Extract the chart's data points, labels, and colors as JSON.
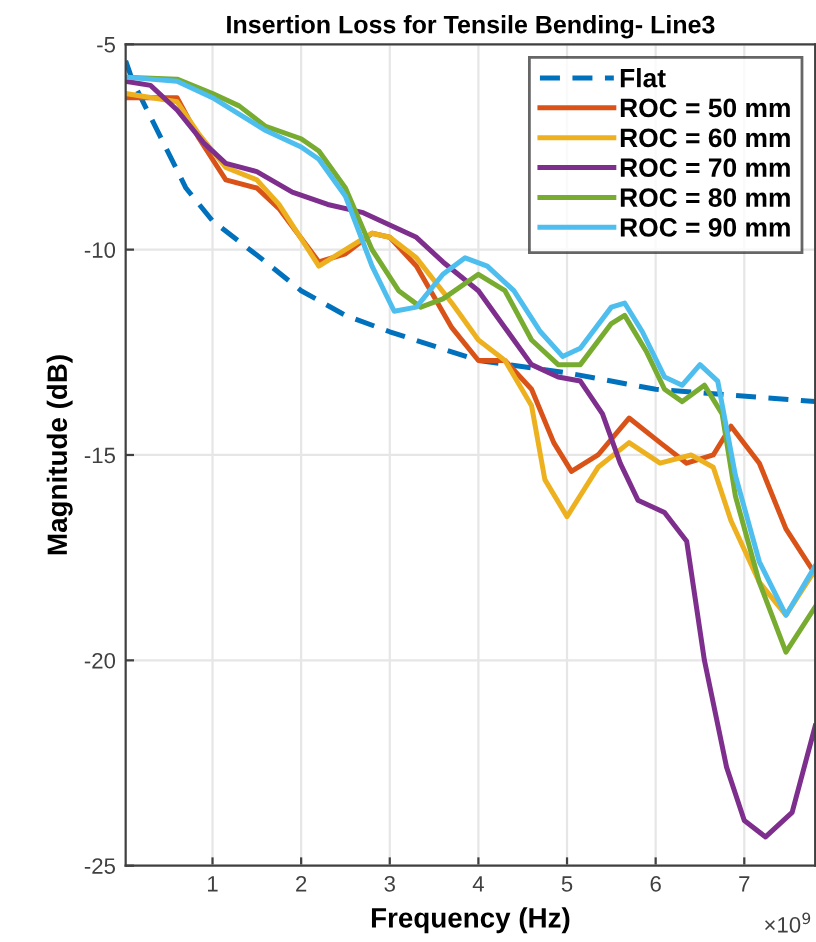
{
  "chart_data": {
    "type": "line",
    "title": "Insertion Loss for Tensile Bending- Line3",
    "xlabel": "Frequency (Hz)",
    "ylabel": "Magnitude (dB)",
    "annotations": [
      "×10$^{9}$"
    ],
    "xlim": [
      0.02,
      7.8
    ],
    "xticks": [
      1,
      2,
      3,
      4,
      5,
      6,
      7
    ],
    "ylim": [
      -25,
      -5
    ],
    "yticks": [
      -25,
      -20,
      -15,
      -10,
      -5
    ],
    "grid": true,
    "legend": "top right",
    "series": [
      {
        "name": "Flat",
        "color": "#0072bd",
        "line_style": "dashed",
        "x": [
          0.02,
          0.1,
          0.4,
          0.7,
          1.0,
          1.6,
          2.0,
          2.5,
          3.0,
          4.0,
          5.0,
          6.0,
          7.8
        ],
        "values": [
          -5.4,
          -5.9,
          -7.2,
          -8.5,
          -9.3,
          -10.3,
          -11.0,
          -11.6,
          -12.0,
          -12.7,
          -13.0,
          -13.4,
          -13.7
        ]
      },
      {
        "name": "ROC = 50 mm",
        "color": "#d95319",
        "x": [
          0.02,
          0.6,
          0.85,
          1.15,
          1.5,
          1.75,
          2.2,
          2.5,
          2.8,
          3.0,
          3.3,
          3.7,
          4.0,
          4.3,
          4.6,
          4.85,
          5.05,
          5.35,
          5.7,
          6.05,
          6.35,
          6.65,
          6.85,
          7.17,
          7.47,
          7.8
        ],
        "values": [
          -6.3,
          -6.3,
          -7.3,
          -8.3,
          -8.5,
          -9.0,
          -10.3,
          -10.1,
          -9.6,
          -9.7,
          -10.4,
          -11.9,
          -12.7,
          -12.7,
          -13.4,
          -14.7,
          -15.4,
          -15.0,
          -14.1,
          -14.7,
          -15.2,
          -15.0,
          -14.3,
          -15.2,
          -16.8,
          -17.9
        ]
      },
      {
        "name": "ROC = 60 mm",
        "color": "#edb120",
        "x": [
          0.02,
          0.6,
          0.85,
          1.15,
          1.5,
          1.75,
          2.2,
          2.5,
          2.8,
          3.0,
          3.3,
          3.7,
          4.0,
          4.3,
          4.6,
          4.75,
          5.0,
          5.35,
          5.7,
          6.05,
          6.4,
          6.65,
          6.85,
          7.17,
          7.47,
          7.8
        ],
        "values": [
          -6.2,
          -6.4,
          -7.2,
          -8.0,
          -8.3,
          -8.9,
          -10.4,
          -10.0,
          -9.6,
          -9.7,
          -10.2,
          -11.3,
          -12.2,
          -12.7,
          -13.8,
          -15.6,
          -16.5,
          -15.3,
          -14.7,
          -15.2,
          -15.0,
          -15.3,
          -16.6,
          -18.1,
          -18.9,
          -17.8
        ]
      },
      {
        "name": "ROC = 70 mm",
        "color": "#7e2f8e",
        "x": [
          0.02,
          0.3,
          0.6,
          0.9,
          1.15,
          1.5,
          1.9,
          2.3,
          2.7,
          3.0,
          3.3,
          3.6,
          4.0,
          4.3,
          4.6,
          4.9,
          5.15,
          5.4,
          5.6,
          5.8,
          6.1,
          6.35,
          6.55,
          6.8,
          7.0,
          7.24,
          7.54,
          7.8
        ],
        "values": [
          -5.9,
          -6.0,
          -6.6,
          -7.4,
          -7.9,
          -8.1,
          -8.6,
          -8.9,
          -9.1,
          -9.4,
          -9.7,
          -10.3,
          -11.0,
          -11.9,
          -12.8,
          -13.1,
          -13.2,
          -14.0,
          -15.2,
          -16.1,
          -16.4,
          -17.1,
          -20.0,
          -22.6,
          -23.9,
          -24.3,
          -23.7,
          -21.6
        ]
      },
      {
        "name": "ROC = 80 mm",
        "color": "#77ac30",
        "x": [
          0.02,
          0.6,
          1.0,
          1.3,
          1.6,
          2.0,
          2.2,
          2.5,
          2.8,
          3.1,
          3.35,
          3.6,
          4.0,
          4.3,
          4.6,
          4.9,
          5.15,
          5.5,
          5.65,
          5.9,
          6.1,
          6.3,
          6.55,
          6.75,
          6.9,
          7.17,
          7.47,
          7.8
        ],
        "values": [
          -5.8,
          -5.85,
          -6.2,
          -6.5,
          -7.0,
          -7.3,
          -7.6,
          -8.5,
          -10.0,
          -11.0,
          -11.4,
          -11.2,
          -10.6,
          -11.0,
          -12.2,
          -12.8,
          -12.8,
          -11.8,
          -11.6,
          -12.5,
          -13.4,
          -13.7,
          -13.3,
          -14.0,
          -16.0,
          -18.1,
          -19.8,
          -18.7
        ]
      },
      {
        "name": "ROC = 90 mm",
        "color": "#4dbeee",
        "x": [
          0.02,
          0.6,
          1.0,
          1.3,
          1.6,
          2.0,
          2.2,
          2.5,
          2.8,
          3.05,
          3.3,
          3.6,
          3.85,
          4.1,
          4.4,
          4.7,
          4.95,
          5.15,
          5.5,
          5.65,
          5.85,
          6.1,
          6.3,
          6.5,
          6.7,
          6.9,
          7.17,
          7.47,
          7.8
        ],
        "values": [
          -5.8,
          -5.9,
          -6.3,
          -6.7,
          -7.1,
          -7.5,
          -7.8,
          -8.7,
          -10.4,
          -11.5,
          -11.4,
          -10.6,
          -10.2,
          -10.4,
          -11.0,
          -12.0,
          -12.6,
          -12.4,
          -11.4,
          -11.3,
          -12.0,
          -13.1,
          -13.3,
          -12.8,
          -13.2,
          -15.5,
          -17.6,
          -18.9,
          -17.7
        ]
      }
    ]
  }
}
